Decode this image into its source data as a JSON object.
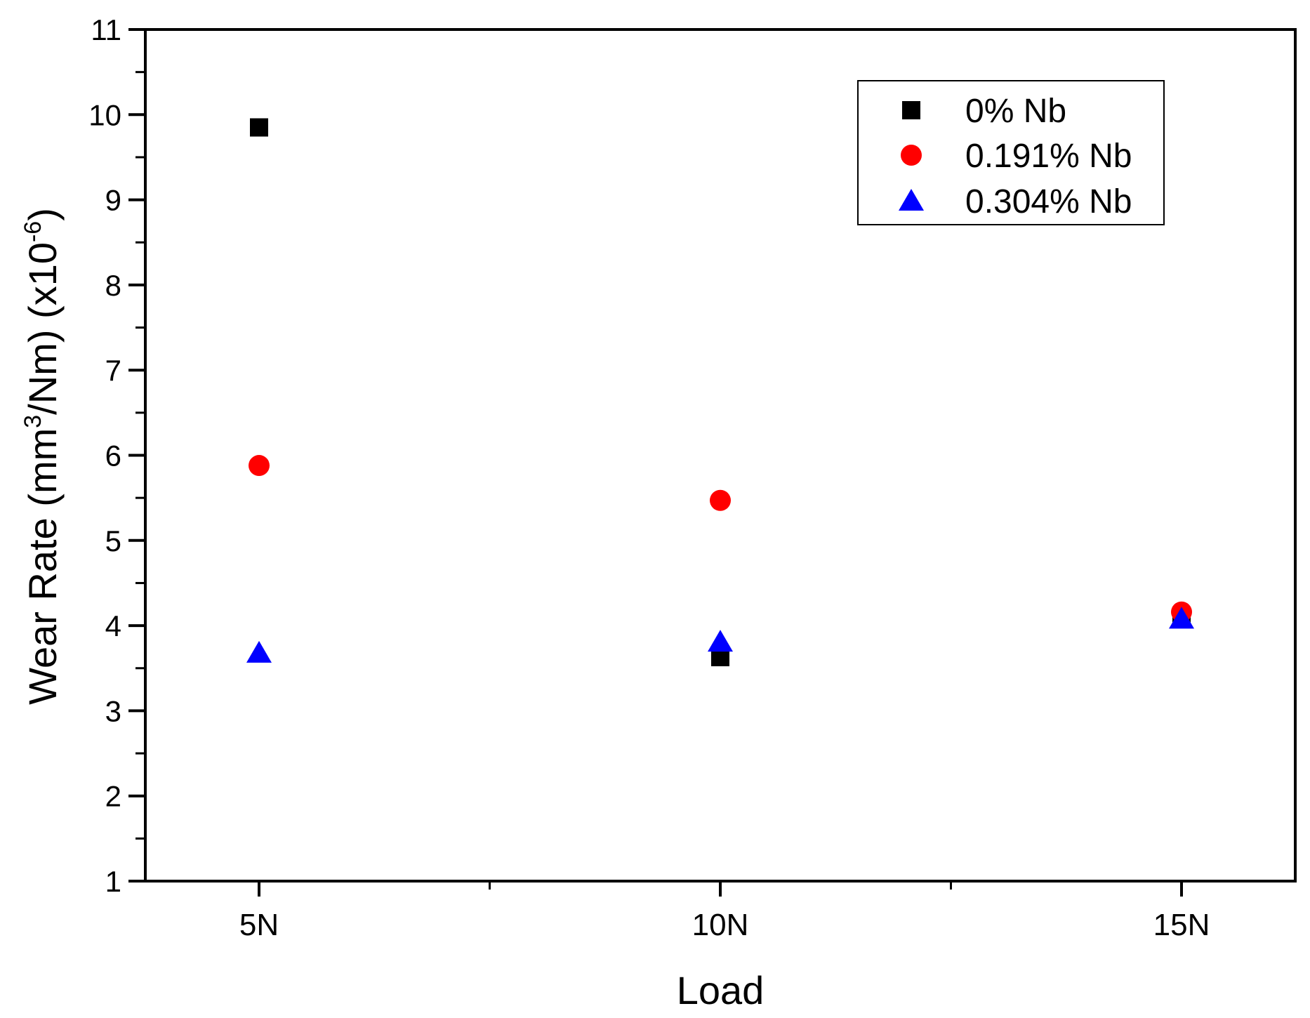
{
  "chart_data": {
    "type": "scatter",
    "categories": [
      "5N",
      "10N",
      "15N"
    ],
    "xlabel": "Load",
    "ylabel": {
      "prefix": "Wear Rate (mm",
      "sup1": "3",
      "middle": "/Nm) (x10",
      "sup2": "-6",
      "suffix": ")"
    },
    "ylim": [
      1,
      11
    ],
    "yticks": [
      1,
      2,
      3,
      4,
      5,
      6,
      7,
      8,
      9,
      10,
      11
    ],
    "grid": false,
    "legend_position": "top-right",
    "series": [
      {
        "name": "0% Nb",
        "marker": "square",
        "color": "#000000",
        "values": [
          9.85,
          3.63,
          4.1
        ]
      },
      {
        "name": "0.191% Nb",
        "marker": "circle",
        "color": "#ff0000",
        "values": [
          5.88,
          5.47,
          4.16
        ]
      },
      {
        "name": "0.304% Nb",
        "marker": "triangle",
        "color": "#0000ff",
        "values": [
          3.68,
          3.81,
          4.08
        ]
      }
    ]
  }
}
